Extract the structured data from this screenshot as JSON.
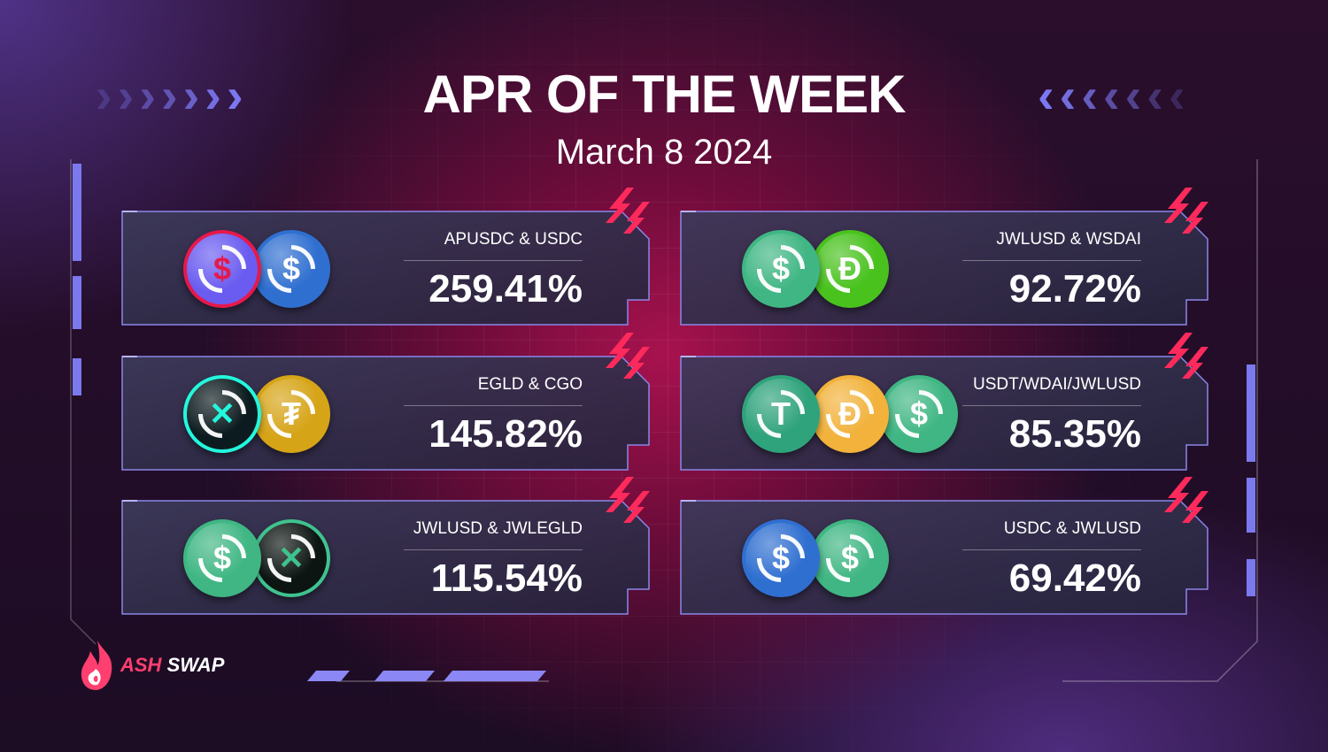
{
  "header": {
    "title": "APR OF THE WEEK",
    "date": "March 8 2024"
  },
  "pools": [
    {
      "pair": "APUSDC & USDC",
      "apr": "259.41%",
      "tokens": [
        {
          "icon": "apusdc-coin-icon",
          "symbol": "$",
          "color": "#6a5cf0",
          "accent": "#e6194b"
        },
        {
          "icon": "usdc-coin-icon",
          "symbol": "$",
          "color": "#2f6fd0",
          "accent": "#2f6fd0"
        }
      ]
    },
    {
      "pair": "JWLUSD & WSDAI",
      "apr": "92.72%",
      "tokens": [
        {
          "icon": "jwlusd-coin-icon",
          "symbol": "$",
          "color": "#3fb683",
          "accent": "#3fb683"
        },
        {
          "icon": "wsdai-coin-icon",
          "symbol": "Ð",
          "color": "#49c21e",
          "accent": "#49c21e"
        }
      ]
    },
    {
      "pair": "EGLD & CGO",
      "apr": "145.82%",
      "tokens": [
        {
          "icon": "egld-coin-icon",
          "symbol": "✕",
          "color": "#0c1b1f",
          "accent": "#23f7dd"
        },
        {
          "icon": "cgo-coin-icon",
          "symbol": "₮",
          "color": "#d6a417",
          "accent": "#d6a417"
        }
      ]
    },
    {
      "pair": "USDT/WDAI/JWLUSD",
      "apr": "85.35%",
      "tokens": [
        {
          "icon": "usdt-coin-icon",
          "symbol": "T",
          "color": "#2fa37b",
          "accent": "#2fa37b"
        },
        {
          "icon": "wdai-coin-icon",
          "symbol": "Ð",
          "color": "#f2b23b",
          "accent": "#f2b23b"
        },
        {
          "icon": "jwlusd-coin-icon",
          "symbol": "$",
          "color": "#3fb683",
          "accent": "#3fb683"
        }
      ]
    },
    {
      "pair": "JWLUSD & JWLEGLD",
      "apr": "115.54%",
      "tokens": [
        {
          "icon": "jwlusd-coin-icon",
          "symbol": "$",
          "color": "#3fb683",
          "accent": "#3fb683"
        },
        {
          "icon": "jwlegld-coin-icon",
          "symbol": "✕",
          "color": "#0c1512",
          "accent": "#3fc38e"
        }
      ]
    },
    {
      "pair": "USDC & JWLUSD",
      "apr": "69.42%",
      "tokens": [
        {
          "icon": "usdc-coin-icon",
          "symbol": "$",
          "color": "#2f6fd0",
          "accent": "#2f6fd0"
        },
        {
          "icon": "jwlusd-coin-icon",
          "symbol": "$",
          "color": "#3fb683",
          "accent": "#3fb683"
        }
      ]
    }
  ],
  "brand": {
    "logo_icon": "ashswap-flame-icon",
    "name_part1": "ASH",
    "name_part2": "SWAP",
    "accent": "#ff3f6f",
    "purple": "#7b79ee"
  }
}
